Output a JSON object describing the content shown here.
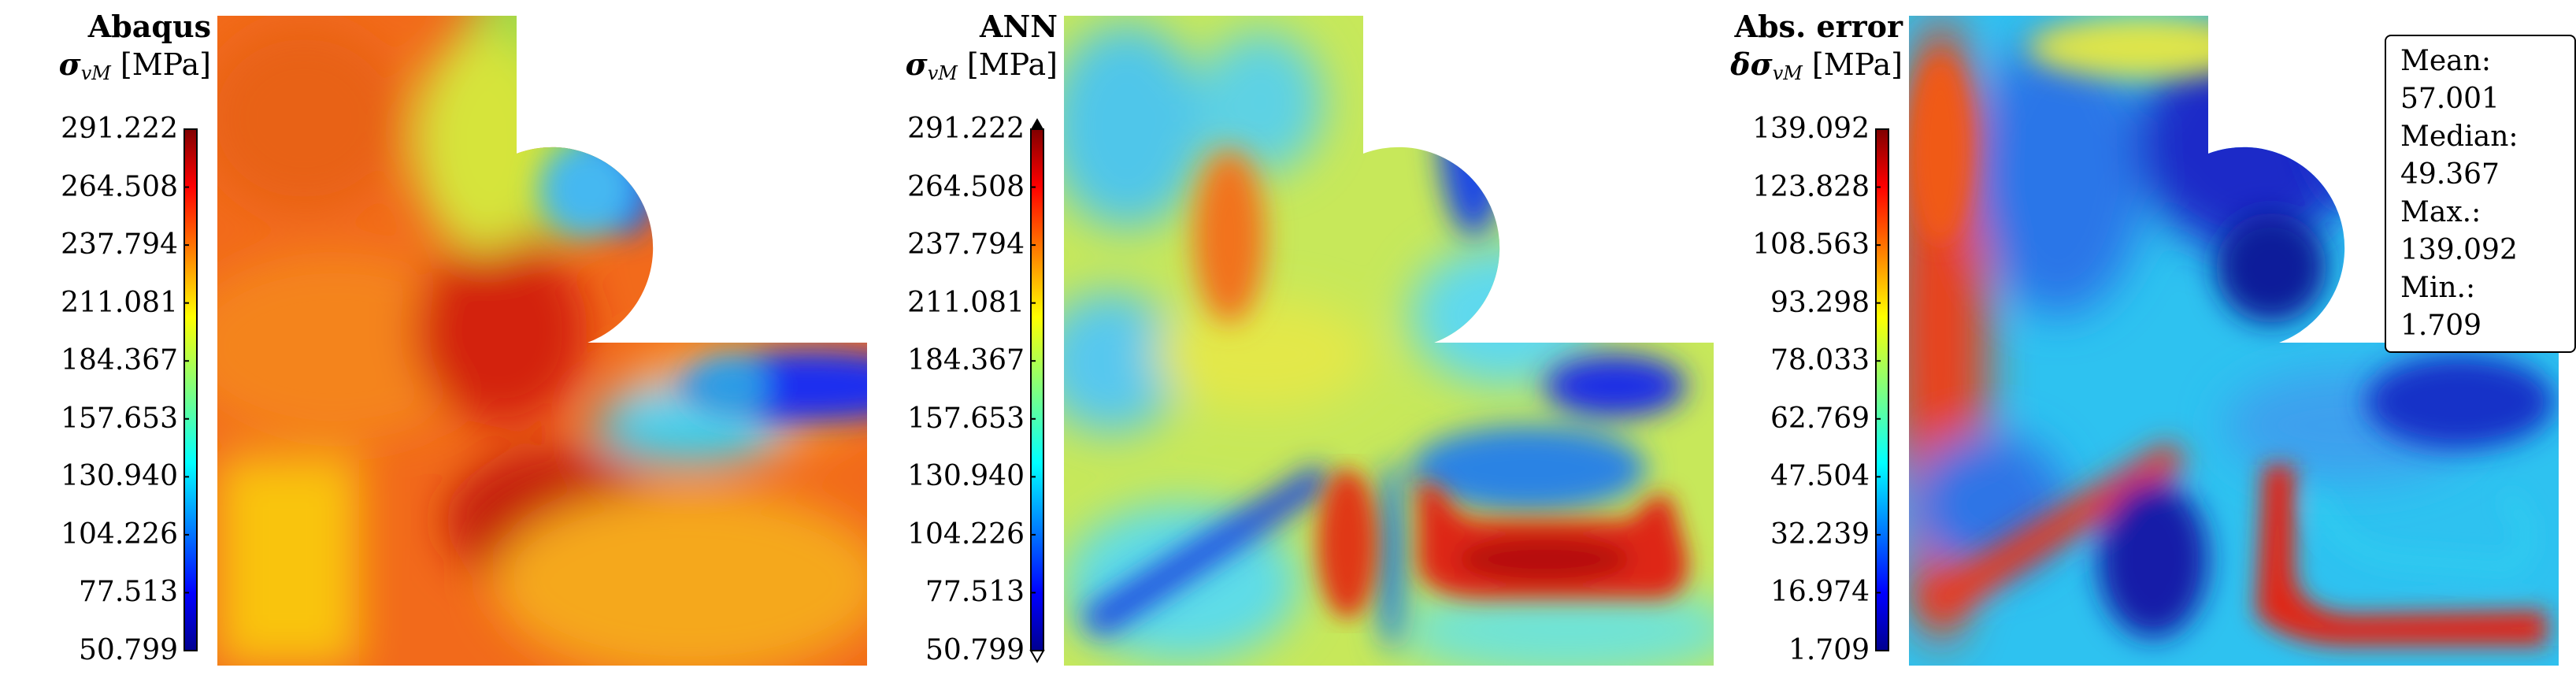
{
  "chart_data": [
    {
      "type": "heatmap",
      "title": "Abaqus",
      "quantity": {
        "symbol": "σ",
        "subscript": "vM",
        "unit": "[MPa]",
        "prefix": ""
      },
      "colorbar": {
        "min": 50.799,
        "max": 291.222,
        "colormap": "jet",
        "extend": "neither",
        "ticks": [
          "291.222",
          "264.508",
          "237.794",
          "211.081",
          "184.367",
          "157.653",
          "130.940",
          "104.226",
          "77.513",
          "50.799"
        ]
      }
    },
    {
      "type": "heatmap",
      "title": "ANN",
      "quantity": {
        "symbol": "σ",
        "subscript": "vM",
        "unit": "[MPa]",
        "prefix": ""
      },
      "colorbar": {
        "min": 50.799,
        "max": 291.222,
        "colormap": "jet",
        "extend": "both",
        "ticks": [
          "291.222",
          "264.508",
          "237.794",
          "211.081",
          "184.367",
          "157.653",
          "130.940",
          "104.226",
          "77.513",
          "50.799"
        ]
      }
    },
    {
      "type": "heatmap",
      "title": "Abs. error",
      "quantity": {
        "symbol": "σ",
        "subscript": "vM",
        "unit": "[MPa]",
        "prefix": "δ"
      },
      "colorbar": {
        "min": 1.709,
        "max": 139.092,
        "colormap": "jet",
        "extend": "neither",
        "ticks": [
          "139.092",
          "123.828",
          "108.563",
          "93.298",
          "78.033",
          "62.769",
          "47.504",
          "32.239",
          "16.974",
          "1.709"
        ]
      },
      "statistics": {
        "mean": {
          "label": "Mean:",
          "value": "57.001"
        },
        "median": {
          "label": "Median:",
          "value": "49.367"
        },
        "max": {
          "label": "Max.:",
          "value": "139.092"
        },
        "min": {
          "label": "Min.:",
          "value": "1.709"
        }
      }
    }
  ]
}
